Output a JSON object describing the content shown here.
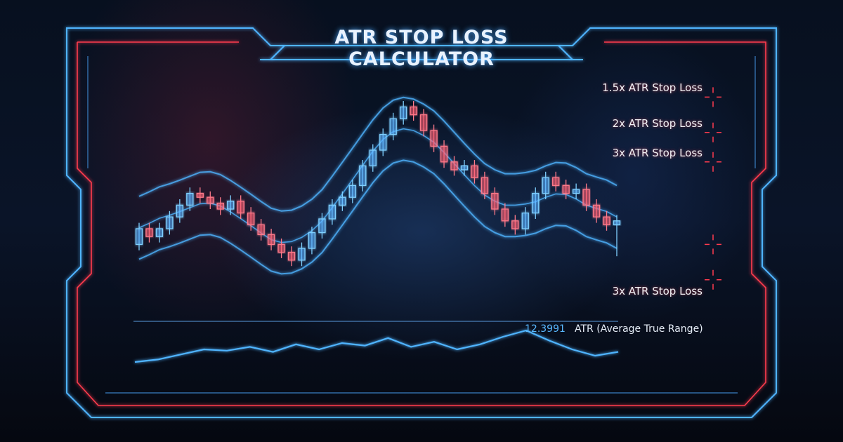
{
  "header": {
    "title": "ATR STOP LOSS CALCULATOR"
  },
  "colors": {
    "accent_blue": "#4fb4ff",
    "accent_red": "#ff3b4e",
    "bull": "#7fd0ff",
    "bear": "#ff7a8a"
  },
  "chart_data": {
    "type": "candlestick",
    "title": "ATR STOP LOSS CALCULATOR",
    "grid": false,
    "open": [
      22,
      30,
      26,
      30,
      36,
      42,
      48,
      46,
      43,
      40,
      44,
      38,
      32,
      27,
      22,
      18,
      14,
      20,
      28,
      35,
      42,
      46,
      52,
      62,
      70,
      78,
      86,
      92,
      88,
      80,
      72,
      64,
      60,
      62,
      56,
      48,
      40,
      34,
      30,
      38,
      48,
      56,
      52,
      48,
      50,
      42,
      36,
      32
    ],
    "close": [
      30,
      26,
      30,
      36,
      42,
      48,
      46,
      43,
      40,
      44,
      38,
      32,
      27,
      22,
      18,
      14,
      20,
      28,
      35,
      42,
      46,
      52,
      62,
      70,
      78,
      86,
      92,
      88,
      80,
      72,
      64,
      60,
      62,
      56,
      48,
      40,
      34,
      30,
      38,
      48,
      56,
      52,
      48,
      50,
      42,
      36,
      32,
      34
    ],
    "high": [
      33,
      33,
      33,
      39,
      45,
      51,
      51,
      49,
      46,
      47,
      47,
      41,
      35,
      30,
      25,
      21,
      23,
      31,
      38,
      45,
      49,
      55,
      65,
      73,
      81,
      89,
      95,
      95,
      91,
      83,
      75,
      67,
      65,
      65,
      59,
      51,
      43,
      37,
      41,
      51,
      59,
      59,
      55,
      53,
      53,
      45,
      39,
      37
    ],
    "low": [
      19,
      23,
      23,
      27,
      33,
      39,
      43,
      40,
      37,
      37,
      35,
      29,
      24,
      19,
      15,
      11,
      11,
      17,
      25,
      32,
      39,
      43,
      49,
      59,
      67,
      75,
      83,
      85,
      77,
      69,
      61,
      57,
      57,
      53,
      45,
      37,
      31,
      27,
      27,
      35,
      45,
      49,
      45,
      45,
      39,
      33,
      29,
      16
    ],
    "stop_levels": [
      {
        "label": "1.5x ATR Stop Loss",
        "level": 97
      },
      {
        "label": "2x ATR Stop Loss",
        "level": 79
      },
      {
        "label": "3x ATR Stop Loss",
        "level": 64
      },
      {
        "label": "",
        "level": 22
      },
      {
        "label": "3x ATR Stop Loss",
        "level": 4
      }
    ],
    "atr": {
      "label": "ATR (Average True Range)",
      "value": "12.3991",
      "series": [
        10,
        14,
        22,
        30,
        28,
        34,
        26,
        38,
        30,
        40,
        36,
        48,
        34,
        42,
        30,
        38,
        50,
        60,
        44,
        30,
        20,
        26
      ]
    }
  }
}
